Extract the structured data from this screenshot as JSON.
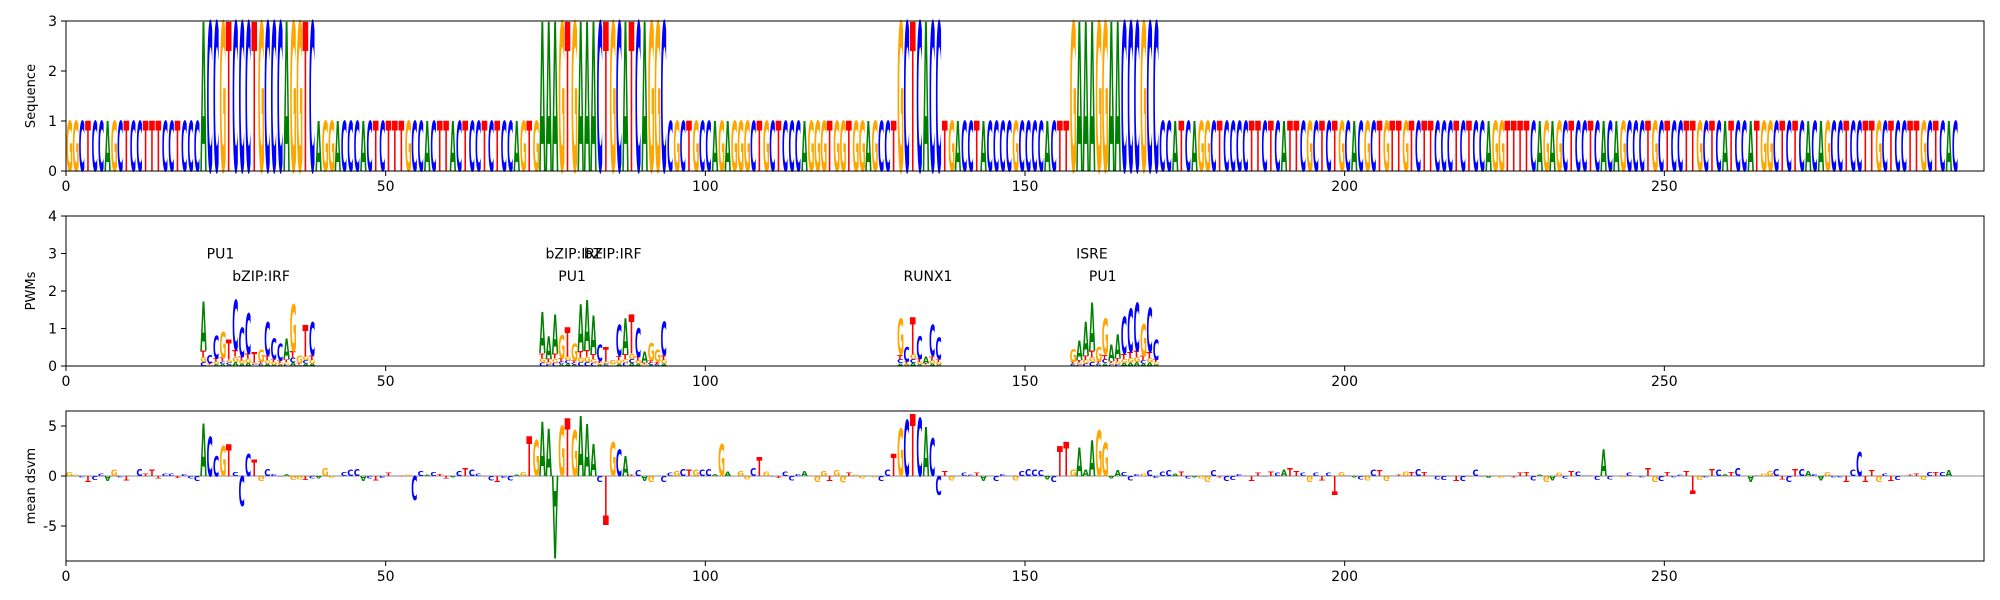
{
  "colors": {
    "A": "#008000",
    "C": "#0000ff",
    "G": "#ffa500",
    "T": "#ff0000"
  },
  "chart_data": [
    {
      "type": "sequence-logo",
      "ylabel": "Sequence",
      "ylim": [
        0,
        3
      ],
      "yticks": [
        "0",
        "1",
        "2",
        "3"
      ],
      "xlim": [
        0,
        300
      ],
      "xticks": [
        "0",
        "50",
        "100",
        "150",
        "200",
        "250"
      ],
      "sequence": "GGCTCCAGCTCCTTTCCTCCCACCGTCCCTGCCCAGGTCAGGACCCACTCTTTGCCACTTACTCCTCTCCAGTGAAAGTGAAACTGCATCAGGCCGCTGCCAGAGGGCTGCTCCCAGGGTGGTGGAGCCTGCTCACCTGACCTACCCCGCCCCACTTGAAAGGAACCCGCCCCATCAGGCTCCCCTTCTCATTCGCTCTGCACGCTGTTGTCTTCCCTCTCCAGGTTTTCAGAGCTCCTCACAGCCCTGCTCCTTGCTCATCCATGGCTCTCACAGCCTCCTTGCTCCTTGCTCAC",
      "highlight_regions": [
        [
          21,
          39
        ],
        [
          74,
          94
        ],
        [
          130,
          137
        ],
        [
          157,
          171
        ]
      ],
      "values_note": "base height 1, highlighted motif regions height 3"
    },
    {
      "type": "motif-logo",
      "ylabel": "PWMs",
      "ylim": [
        0,
        4
      ],
      "yticks": [
        "0",
        "1",
        "2",
        "3",
        "4"
      ],
      "xlim": [
        0,
        300
      ],
      "xticks": [
        "0",
        "50",
        "100",
        "150",
        "200",
        "250"
      ],
      "motifs": [
        {
          "name": "PU1",
          "x": 22,
          "y": 3.0
        },
        {
          "name": "bZIP:IRF",
          "x": 26,
          "y": 2.4
        },
        {
          "name": "bZIP:IRF",
          "x": 75,
          "y": 3.0
        },
        {
          "name": "bZIP:IRF",
          "x": 81,
          "y": 3.0
        },
        {
          "name": "PU1",
          "x": 77,
          "y": 2.4
        },
        {
          "name": "RUNX1",
          "x": 131,
          "y": 2.4
        },
        {
          "name": "ISRE",
          "x": 158,
          "y": 3.0
        },
        {
          "name": "PU1",
          "x": 160,
          "y": 2.4
        }
      ],
      "regions": [
        [
          21,
          39
        ],
        [
          74,
          94
        ],
        [
          130,
          137
        ],
        [
          157,
          171
        ]
      ],
      "peak_max": 1.8
    },
    {
      "type": "importance-logo",
      "ylabel": "mean dsvm",
      "ylim": [
        -8.5,
        6.5
      ],
      "yticks": [
        "-5",
        "0",
        "5"
      ],
      "ytick_values": [
        -5,
        0,
        5
      ],
      "xlim": [
        0,
        300
      ],
      "xticks": [
        "0",
        "50",
        "100",
        "150",
        "200",
        "250"
      ],
      "peaks": [
        {
          "pos": 21,
          "value": 5.3
        },
        {
          "pos": 22,
          "value": 4.0
        },
        {
          "pos": 23,
          "value": 2.0
        },
        {
          "pos": 24,
          "value": 3.0
        },
        {
          "pos": 25,
          "value": 3.2
        },
        {
          "pos": 27,
          "value": -3.0
        },
        {
          "pos": 28,
          "value": 2.2
        },
        {
          "pos": 29,
          "value": 1.6
        },
        {
          "pos": 54,
          "value": -2.4
        },
        {
          "pos": 72,
          "value": 4.0
        },
        {
          "pos": 73,
          "value": 3.6
        },
        {
          "pos": 74,
          "value": 5.4
        },
        {
          "pos": 75,
          "value": 4.8
        },
        {
          "pos": 76,
          "value": -8.3
        },
        {
          "pos": 77,
          "value": 5.0
        },
        {
          "pos": 78,
          "value": 5.8
        },
        {
          "pos": 79,
          "value": 4.6
        },
        {
          "pos": 80,
          "value": 6.0
        },
        {
          "pos": 81,
          "value": 5.2
        },
        {
          "pos": 82,
          "value": 3.2
        },
        {
          "pos": 84,
          "value": -4.9
        },
        {
          "pos": 85,
          "value": 3.4
        },
        {
          "pos": 86,
          "value": 2.7
        },
        {
          "pos": 87,
          "value": 2.0
        },
        {
          "pos": 102,
          "value": 3.2
        },
        {
          "pos": 108,
          "value": 1.9
        },
        {
          "pos": 129,
          "value": 2.2
        },
        {
          "pos": 130,
          "value": 4.8
        },
        {
          "pos": 131,
          "value": 5.6
        },
        {
          "pos": 132,
          "value": 6.2
        },
        {
          "pos": 133,
          "value": 5.8
        },
        {
          "pos": 134,
          "value": 4.9
        },
        {
          "pos": 135,
          "value": 3.8
        },
        {
          "pos": 136,
          "value": -1.9
        },
        {
          "pos": 155,
          "value": 3.0
        },
        {
          "pos": 156,
          "value": 3.4
        },
        {
          "pos": 158,
          "value": 2.9
        },
        {
          "pos": 160,
          "value": 3.6
        },
        {
          "pos": 161,
          "value": 4.6
        },
        {
          "pos": 162,
          "value": 3.3
        },
        {
          "pos": 198,
          "value": -1.9
        },
        {
          "pos": 240,
          "value": 2.7
        },
        {
          "pos": 254,
          "value": -1.8
        },
        {
          "pos": 280,
          "value": 2.4
        }
      ]
    }
  ]
}
